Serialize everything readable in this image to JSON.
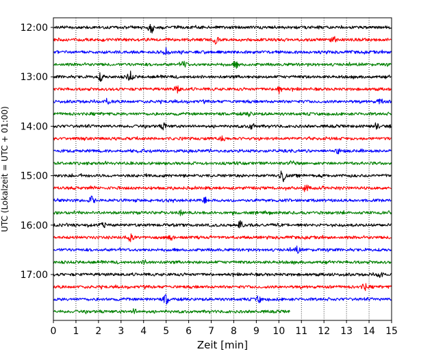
{
  "chart_data": {
    "type": "line",
    "title": "",
    "xlabel": "Zeit  [min]",
    "ylabel": "UTC (Lokalzeit = UTC + 01:00)",
    "xlim": [
      0,
      15
    ],
    "x_ticks": [
      0,
      1,
      2,
      3,
      4,
      5,
      6,
      7,
      8,
      9,
      10,
      11,
      12,
      13,
      14,
      15
    ],
    "grid": "vertical dotted lines at each minute",
    "legend": "none",
    "y_tick_labels": [
      "12:00",
      "13:00",
      "14:00",
      "15:00",
      "16:00",
      "17:00"
    ],
    "y_tick_rows": [
      0,
      4,
      8,
      12,
      16,
      20
    ],
    "trace_colors": [
      "#000000",
      "#ff0000",
      "#0000ff",
      "#008000"
    ],
    "traces": [
      {
        "start": "12:00",
        "end_min": 15,
        "color": "#000000",
        "events": [
          [
            4.35,
            7
          ]
        ]
      },
      {
        "start": "12:15",
        "end_min": 15,
        "color": "#ff0000",
        "events": [
          [
            7.2,
            5
          ],
          [
            12.4,
            4
          ]
        ]
      },
      {
        "start": "12:30",
        "end_min": 15,
        "color": "#0000ff",
        "events": [
          [
            5.0,
            5
          ]
        ]
      },
      {
        "start": "12:45",
        "end_min": 15,
        "color": "#008000",
        "events": [
          [
            5.8,
            5
          ],
          [
            8.1,
            4
          ]
        ]
      },
      {
        "start": "13:00",
        "end_min": 15,
        "color": "#000000",
        "events": [
          [
            2.1,
            5
          ],
          [
            3.4,
            7
          ]
        ]
      },
      {
        "start": "13:15",
        "end_min": 15,
        "color": "#ff0000",
        "events": [
          [
            5.5,
            5
          ],
          [
            10.0,
            6
          ]
        ]
      },
      {
        "start": "13:30",
        "end_min": 15,
        "color": "#0000ff",
        "events": [
          [
            2.4,
            4
          ],
          [
            14.5,
            4
          ]
        ]
      },
      {
        "start": "13:45",
        "end_min": 15,
        "color": "#008000",
        "events": [
          [
            8.7,
            3
          ]
        ]
      },
      {
        "start": "14:00",
        "end_min": 15,
        "color": "#000000",
        "events": [
          [
            4.9,
            4
          ],
          [
            8.8,
            4
          ],
          [
            14.3,
            4
          ]
        ]
      },
      {
        "start": "14:15",
        "end_min": 15,
        "color": "#ff0000",
        "events": [
          [
            7.5,
            3
          ]
        ]
      },
      {
        "start": "14:30",
        "end_min": 15,
        "color": "#0000ff",
        "events": [
          [
            12.6,
            3
          ]
        ]
      },
      {
        "start": "14:45",
        "end_min": 15,
        "color": "#008000",
        "events": [
          [
            10.6,
            3
          ]
        ]
      },
      {
        "start": "15:00",
        "end_min": 15,
        "color": "#000000",
        "events": [
          [
            10.15,
            10
          ]
        ]
      },
      {
        "start": "15:15",
        "end_min": 15,
        "color": "#ff0000",
        "events": [
          [
            11.2,
            5
          ]
        ]
      },
      {
        "start": "15:30",
        "end_min": 15,
        "color": "#0000ff",
        "events": [
          [
            1.7,
            5
          ],
          [
            6.7,
            4
          ]
        ]
      },
      {
        "start": "15:45",
        "end_min": 15,
        "color": "#008000",
        "events": [
          [
            5.7,
            4
          ]
        ]
      },
      {
        "start": "16:00",
        "end_min": 15,
        "color": "#000000",
        "events": [
          [
            2.2,
            3
          ],
          [
            8.3,
            5
          ]
        ]
      },
      {
        "start": "16:15",
        "end_min": 15,
        "color": "#ff0000",
        "events": [
          [
            3.4,
            5
          ],
          [
            5.2,
            3
          ]
        ]
      },
      {
        "start": "16:30",
        "end_min": 15,
        "color": "#0000ff",
        "events": [
          [
            10.8,
            4
          ]
        ]
      },
      {
        "start": "16:45",
        "end_min": 15,
        "color": "#008000",
        "events": [
          [
            4.1,
            3
          ]
        ]
      },
      {
        "start": "17:00",
        "end_min": 15,
        "color": "#000000",
        "events": [
          [
            14.5,
            4
          ]
        ]
      },
      {
        "start": "17:15",
        "end_min": 15,
        "color": "#ff0000",
        "events": [
          [
            13.8,
            4
          ]
        ]
      },
      {
        "start": "17:30",
        "end_min": 15,
        "color": "#0000ff",
        "events": [
          [
            5.0,
            7
          ],
          [
            9.1,
            4
          ]
        ]
      },
      {
        "start": "17:45",
        "end_min": 10.5,
        "color": "#008000",
        "events": [
          [
            3.6,
            3
          ]
        ]
      }
    ]
  }
}
